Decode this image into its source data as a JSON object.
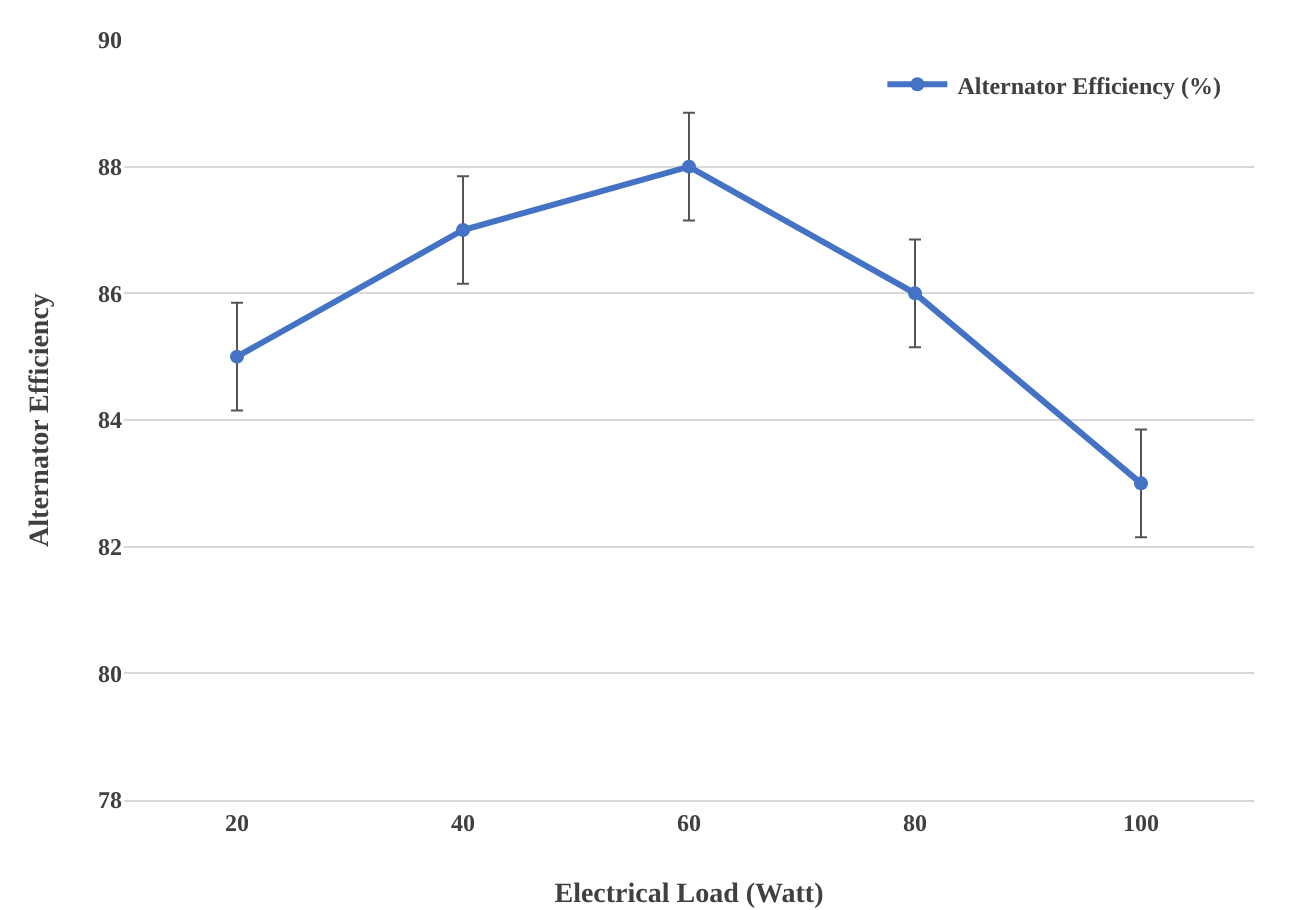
{
  "chart_data": {
    "type": "line",
    "xlabel": "Electrical Load (Watt)",
    "ylabel": "Alternator Efficiency",
    "categories": [
      "20",
      "40",
      "60",
      "80",
      "100"
    ],
    "series": [
      {
        "name": "Alternator Efficiency (%)",
        "color": "#4472c4",
        "values": [
          85,
          87,
          88,
          86,
          83
        ],
        "errors": [
          0.85,
          0.85,
          0.85,
          0.85,
          0.85
        ]
      }
    ],
    "ylim": [
      78,
      90
    ],
    "yticks": [
      78,
      80,
      82,
      84,
      86,
      88,
      90
    ],
    "grid": "y",
    "legend": "top right",
    "marker": "circle",
    "line_style": "solid"
  }
}
